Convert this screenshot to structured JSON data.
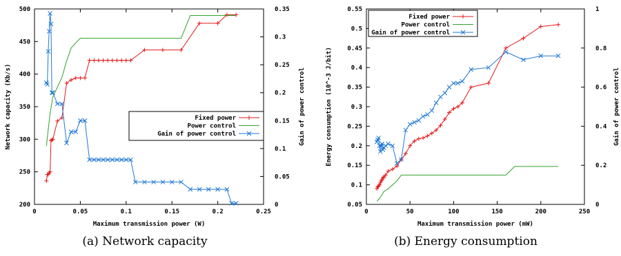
{
  "captions": [
    "(a) Network capacity",
    "(b) Energy consumption"
  ],
  "chart_data": [
    {
      "type": "line",
      "title": "",
      "xlabel": "Maximum transmission power (W)",
      "ylabel": "Network capacity (Kb/s)",
      "y2label": "Gain of power control",
      "xlim": [
        0,
        0.25
      ],
      "ylim": [
        200,
        500
      ],
      "y2lim": [
        0,
        0.35
      ],
      "x_ticks": [
        "0",
        "0.05",
        "0.1",
        "0.15",
        "0.2",
        "0.25"
      ],
      "y_ticks": [
        "200",
        "250",
        "300",
        "350",
        "400",
        "450",
        "500"
      ],
      "y2_ticks": [
        "0",
        "0.05",
        "0.1",
        "0.15",
        "0.2",
        "0.25",
        "0.3",
        "0.35"
      ],
      "legend_position": "center-right",
      "series": [
        {
          "name": "Fixed power",
          "axis": "y",
          "color": "#e41a1c",
          "marker": "plus",
          "x": [
            0.013,
            0.014,
            0.015,
            0.016,
            0.017,
            0.018,
            0.019,
            0.02,
            0.025,
            0.03,
            0.035,
            0.04,
            0.045,
            0.05,
            0.055,
            0.06,
            0.065,
            0.07,
            0.075,
            0.08,
            0.085,
            0.09,
            0.095,
            0.1,
            0.105,
            0.12,
            0.14,
            0.16,
            0.18,
            0.2,
            0.21,
            0.22
          ],
          "y": [
            236,
            246,
            246,
            248,
            250,
            298,
            299,
            300,
            328,
            333,
            386,
            391,
            394,
            394,
            394,
            421,
            421,
            421,
            421,
            421,
            421,
            421,
            421,
            421,
            421,
            437,
            437,
            437,
            478,
            478,
            491,
            491
          ]
        },
        {
          "name": "Power control",
          "axis": "y",
          "color": "#33a02c",
          "marker": "none",
          "x": [
            0.013,
            0.015,
            0.017,
            0.02,
            0.025,
            0.03,
            0.035,
            0.04,
            0.045,
            0.05,
            0.055,
            0.06,
            0.08,
            0.1,
            0.12,
            0.14,
            0.16,
            0.17,
            0.18,
            0.2,
            0.22
          ],
          "y": [
            290,
            315,
            340,
            365,
            380,
            395,
            420,
            440,
            448,
            455,
            455,
            455,
            455,
            455,
            455,
            455,
            455,
            490,
            490,
            490,
            490
          ]
        },
        {
          "name": "Gain of power control",
          "axis": "y2",
          "color": "#1f78d4",
          "marker": "x",
          "x": [
            0.013,
            0.014,
            0.015,
            0.016,
            0.017,
            0.018,
            0.019,
            0.02,
            0.025,
            0.03,
            0.035,
            0.04,
            0.045,
            0.05,
            0.055,
            0.06,
            0.065,
            0.07,
            0.075,
            0.08,
            0.085,
            0.09,
            0.095,
            0.1,
            0.105,
            0.11,
            0.12,
            0.13,
            0.14,
            0.15,
            0.16,
            0.17,
            0.18,
            0.19,
            0.2,
            0.21,
            0.215,
            0.22
          ],
          "y": [
            0.218,
            0.215,
            0.274,
            0.31,
            0.342,
            0.323,
            0.2,
            0.2,
            0.18,
            0.18,
            0.11,
            0.13,
            0.13,
            0.15,
            0.15,
            0.08,
            0.08,
            0.08,
            0.08,
            0.08,
            0.08,
            0.08,
            0.08,
            0.08,
            0.08,
            0.04,
            0.04,
            0.04,
            0.04,
            0.04,
            0.04,
            0.027,
            0.027,
            0.027,
            0.027,
            0.027,
            0.002,
            0.002
          ]
        }
      ]
    },
    {
      "type": "line",
      "title": "",
      "xlabel": "Maximum transmission power (mW)",
      "ylabel": "Energy consumption (10^-3 J/bit)",
      "y2label": "Gain of power control",
      "xlim": [
        0,
        250
      ],
      "ylim": [
        0.05,
        0.55
      ],
      "y2lim": [
        0,
        1
      ],
      "x_ticks": [
        "0",
        "50",
        "100",
        "150",
        "200",
        "250"
      ],
      "y_ticks": [
        "0.05",
        "0.1",
        "0.15",
        "0.2",
        "0.25",
        "0.3",
        "0.35",
        "0.4",
        "0.45",
        "0.5",
        "0.55"
      ],
      "y2_ticks": [
        "0",
        "0.2",
        "0.4",
        "0.6",
        "0.8",
        "1"
      ],
      "legend_position": "top-left",
      "series": [
        {
          "name": "Fixed power",
          "axis": "y",
          "color": "#e41a1c",
          "marker": "plus",
          "x": [
            12,
            13,
            14,
            15,
            16,
            17,
            18,
            19,
            20,
            22,
            25,
            30,
            35,
            40,
            45,
            50,
            55,
            60,
            65,
            70,
            75,
            80,
            85,
            90,
            95,
            100,
            105,
            110,
            120,
            140,
            160,
            180,
            200,
            220
          ],
          "y": [
            0.09,
            0.095,
            0.097,
            0.1,
            0.105,
            0.11,
            0.113,
            0.118,
            0.12,
            0.125,
            0.135,
            0.14,
            0.148,
            0.165,
            0.18,
            0.2,
            0.212,
            0.218,
            0.22,
            0.225,
            0.232,
            0.24,
            0.252,
            0.268,
            0.285,
            0.295,
            0.3,
            0.31,
            0.35,
            0.36,
            0.45,
            0.475,
            0.505,
            0.51
          ]
        },
        {
          "name": "Power control",
          "axis": "y",
          "color": "#33a02c",
          "marker": "none",
          "x": [
            12,
            15,
            18,
            20,
            25,
            30,
            35,
            40,
            50,
            60,
            80,
            100,
            120,
            140,
            150,
            160,
            170,
            180,
            200,
            220
          ],
          "y": [
            0.058,
            0.065,
            0.075,
            0.083,
            0.09,
            0.1,
            0.11,
            0.125,
            0.125,
            0.125,
            0.125,
            0.125,
            0.125,
            0.125,
            0.125,
            0.125,
            0.147,
            0.147,
            0.147,
            0.147
          ]
        },
        {
          "name": "Gain of power control",
          "axis": "y2",
          "color": "#1f78d4",
          "marker": "x",
          "x": [
            12,
            13,
            14,
            15,
            16,
            17,
            18,
            19,
            20,
            22,
            25,
            30,
            35,
            40,
            45,
            50,
            55,
            60,
            65,
            70,
            75,
            80,
            85,
            90,
            95,
            100,
            105,
            110,
            120,
            140,
            160,
            180,
            200,
            220
          ],
          "y": [
            0.32,
            0.33,
            0.34,
            0.3,
            0.27,
            0.3,
            0.31,
            0.28,
            0.29,
            0.3,
            0.31,
            0.3,
            0.21,
            0.23,
            0.38,
            0.41,
            0.42,
            0.43,
            0.45,
            0.46,
            0.48,
            0.52,
            0.55,
            0.57,
            0.6,
            0.62,
            0.62,
            0.63,
            0.69,
            0.7,
            0.78,
            0.74,
            0.76,
            0.76
          ]
        }
      ]
    }
  ]
}
